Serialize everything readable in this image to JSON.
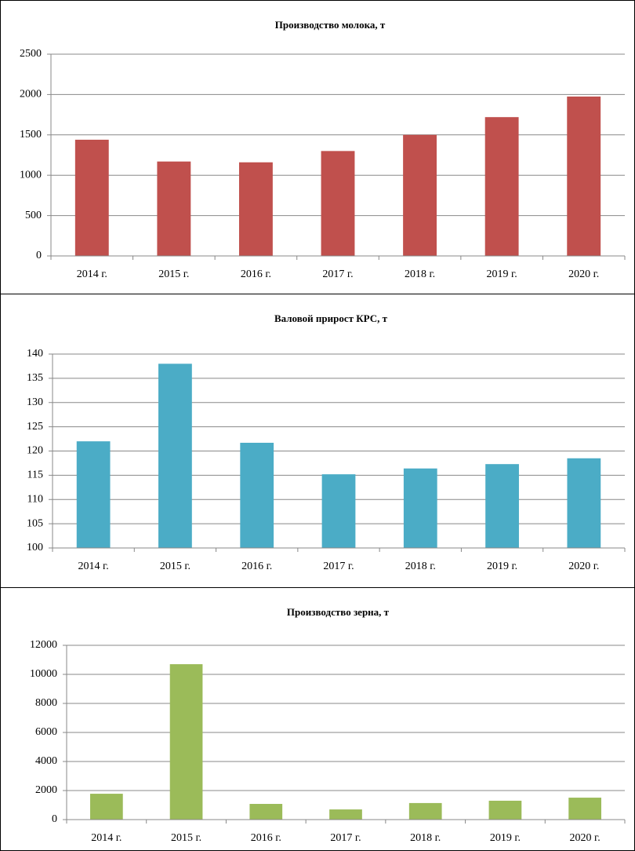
{
  "chart_data": [
    {
      "type": "bar",
      "title": "Производство молока, т",
      "categories": [
        "2014 г.",
        "2015 г.",
        "2016 г.",
        "2017 г.",
        "2018 г.",
        "2019 г.",
        "2020 г."
      ],
      "values": [
        1440,
        1170,
        1160,
        1300,
        1500,
        1720,
        1975
      ],
      "color": "#c0504d",
      "ylim": [
        0,
        2500
      ],
      "yticks": [
        0,
        500,
        1000,
        1500,
        2000,
        2500
      ],
      "grid": true
    },
    {
      "type": "bar",
      "title": "Валовой прирост КРС, т",
      "categories": [
        "2014 г.",
        "2015 г.",
        "2016 г.",
        "2017 г.",
        "2018 г.",
        "2019 г.",
        "2020 г."
      ],
      "values": [
        122,
        138,
        121.7,
        115.2,
        116.4,
        117.3,
        118.5
      ],
      "color": "#4bacc6",
      "ylim": [
        100,
        140
      ],
      "yticks": [
        100,
        105,
        110,
        115,
        120,
        125,
        130,
        135,
        140
      ],
      "grid": true
    },
    {
      "type": "bar",
      "title": "Производство зерна, т",
      "categories": [
        "2014 г.",
        "2015 г.",
        "2016 г.",
        "2017 г.",
        "2018 г.",
        "2019 г.",
        "2020 г."
      ],
      "values": [
        1780,
        10700,
        1080,
        700,
        1140,
        1300,
        1510
      ],
      "color": "#9bbb59",
      "ylim": [
        0,
        12000
      ],
      "yticks": [
        0,
        2000,
        4000,
        6000,
        8000,
        10000,
        12000
      ],
      "grid": true
    }
  ]
}
